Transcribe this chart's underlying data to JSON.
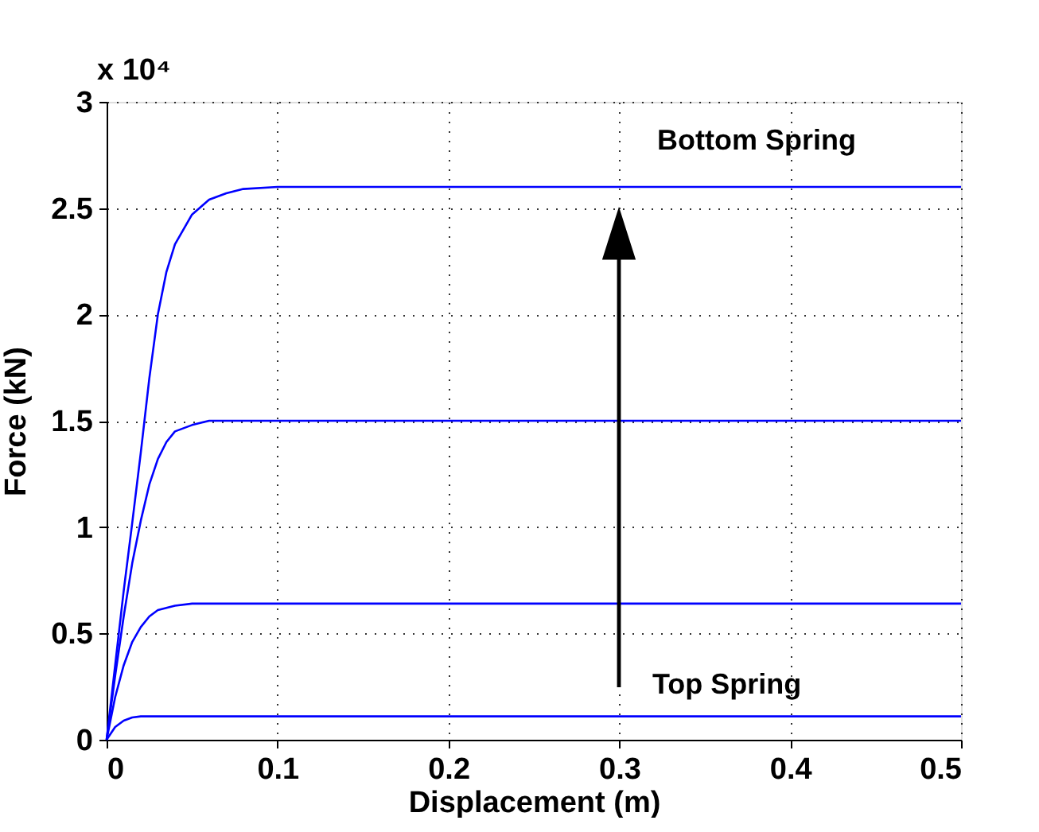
{
  "chart_data": {
    "type": "line",
    "xlabel": "Displacement (m)",
    "ylabel": "Force (kN)",
    "xlim": [
      0,
      0.5
    ],
    "xticks": [
      0,
      0.1,
      0.2,
      0.3,
      0.4,
      0.5
    ],
    "ylim": [
      0,
      3
    ],
    "yticks": [
      0,
      0.5,
      1,
      1.5,
      2,
      2.5,
      3
    ],
    "grid": true,
    "marker": "none",
    "line_style": "solid",
    "series": [
      {
        "color": "#0000ff",
        "x": [
          0,
          0.005,
          0.01,
          0.015,
          0.02,
          0.5
        ],
        "values": [
          0,
          0.06,
          0.09,
          0.105,
          0.11,
          0.11
        ]
      },
      {
        "color": "#0000ff",
        "x": [
          0,
          0.005,
          0.01,
          0.015,
          0.02,
          0.025,
          0.03,
          0.04,
          0.05,
          0.5
        ],
        "values": [
          0,
          0.2,
          0.35,
          0.46,
          0.53,
          0.58,
          0.61,
          0.63,
          0.64,
          0.64
        ]
      },
      {
        "color": "#0000ff",
        "x": [
          0,
          0.005,
          0.01,
          0.015,
          0.02,
          0.025,
          0.03,
          0.035,
          0.04,
          0.05,
          0.06,
          0.1,
          0.5
        ],
        "values": [
          0,
          0.3,
          0.58,
          0.83,
          1.03,
          1.2,
          1.32,
          1.4,
          1.45,
          1.48,
          1.5,
          1.5,
          1.5
        ]
      },
      {
        "color": "#0000ff",
        "x": [
          0,
          0.005,
          0.01,
          0.015,
          0.02,
          0.025,
          0.03,
          0.035,
          0.04,
          0.05,
          0.06,
          0.07,
          0.08,
          0.1,
          0.5
        ],
        "values": [
          0,
          0.35,
          0.7,
          1.02,
          1.35,
          1.7,
          2.0,
          2.2,
          2.33,
          2.47,
          2.54,
          2.57,
          2.59,
          2.6,
          2.6
        ]
      }
    ],
    "annotations": [
      "x 10⁴",
      "Top Spring",
      "Bottom Spring"
    ]
  }
}
